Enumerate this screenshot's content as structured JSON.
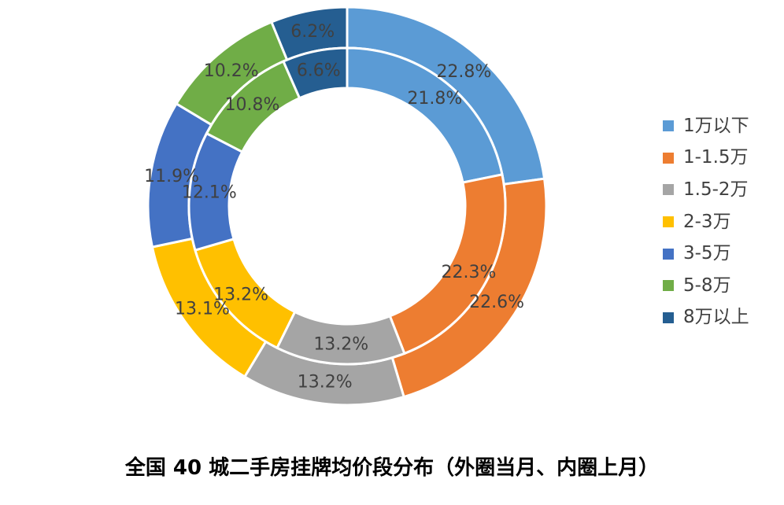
{
  "chart_data": {
    "type": "donut",
    "title": "全国 40 城二手房挂牌均价段分布（外圈当月、内圈上月）",
    "categories": [
      "1万以下",
      "1-1.5万",
      "1.5-2万",
      "2-3万",
      "3-5万",
      "5-8万",
      "8万以上"
    ],
    "colors": [
      "#5B9BD5",
      "#ED7D31",
      "#A5A5A5",
      "#FFC000",
      "#4472C4",
      "#70AD47",
      "#255E91"
    ],
    "series": [
      {
        "ring": "outer",
        "values": [
          22.8,
          22.6,
          13.2,
          13.1,
          11.9,
          10.2,
          6.2
        ],
        "labels": [
          "22.8%",
          "22.6%",
          "13.2%",
          "13.1%",
          "11.9%",
          "10.2%",
          "6.2%"
        ]
      },
      {
        "ring": "inner",
        "values": [
          21.8,
          22.3,
          13.2,
          13.2,
          12.1,
          10.8,
          6.6
        ],
        "labels": [
          "21.8%",
          "22.3%",
          "13.2%",
          "13.2%",
          "12.1%",
          "10.8%",
          "6.6%"
        ]
      }
    ],
    "legend_position": "right"
  }
}
